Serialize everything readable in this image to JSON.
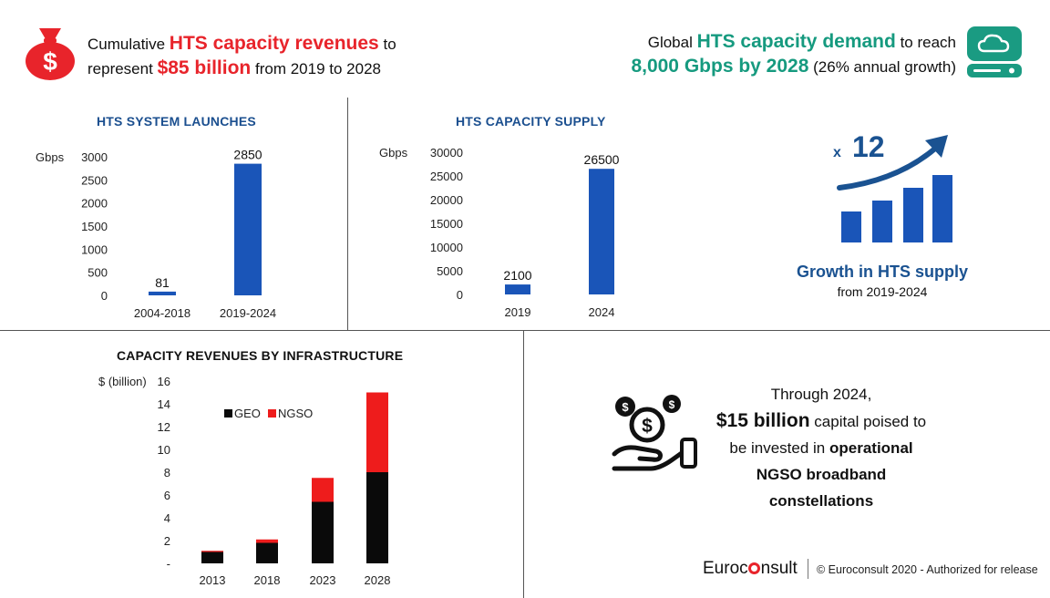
{
  "headline_left": {
    "pre": "Cumulative",
    "highlight1": "HTS capacity revenues",
    "mid": "to",
    "line2_pre": "represent",
    "highlight2": "$85 billion",
    "line2_post": "from 2019 to 2028"
  },
  "headline_right": {
    "pre": "Global",
    "highlight1": "HTS capacity demand",
    "mid": "to reach",
    "highlight2": "8,000 Gbps by 2028",
    "post": "(26% annual growth)"
  },
  "growth": {
    "multiplier_prefix": "x",
    "multiplier": "12",
    "title": "Growth in HTS supply",
    "subtitle": "from 2019-2024"
  },
  "investment": {
    "line1": "Through 2024,",
    "amount": "$15 billion",
    "line2_post": "capital poised to",
    "line3_pre": "be invested in",
    "line3_bold": "operational",
    "line4": "NGSO broadband",
    "line5": "constellations"
  },
  "footer": {
    "brand_pre": "Euroc",
    "brand_post": "nsult",
    "copyright": "© Euroconsult 2020 - Authorized for release"
  },
  "colors": {
    "bar_blue": "#1a55b8",
    "geo": "#0a0a0a",
    "ngso": "#ee1c1c",
    "headline_red": "#e8242b",
    "headline_teal": "#169a7f",
    "growth_blue": "#1a5291"
  },
  "chart_data": [
    {
      "id": "launches",
      "type": "bar",
      "title": "HTS SYSTEM LAUNCHES",
      "ylabel": "Gbps",
      "categories": [
        "2004-2018",
        "2019-2024"
      ],
      "values": [
        81,
        2850
      ],
      "data_labels": [
        "81",
        "2850"
      ],
      "yticks": [
        "0",
        "500",
        "1000",
        "1500",
        "2000",
        "2500",
        "3000"
      ],
      "ylim": [
        0,
        3000
      ],
      "grid": false
    },
    {
      "id": "supply",
      "type": "bar",
      "title": "HTS CAPACITY SUPPLY",
      "ylabel": "Gbps",
      "categories": [
        "2019",
        "2024"
      ],
      "values": [
        2100,
        26500
      ],
      "data_labels": [
        "2100",
        "26500"
      ],
      "yticks": [
        "0",
        "5000",
        "10000",
        "15000",
        "20000",
        "25000",
        "30000"
      ],
      "ylim": [
        0,
        30000
      ],
      "grid": false
    },
    {
      "id": "revenues",
      "type": "bar",
      "stacked": true,
      "title": "CAPACITY REVENUES BY INFRASTRUCTURE",
      "ylabel": "$ (billion)",
      "categories": [
        "2013",
        "2018",
        "2023",
        "2028"
      ],
      "series": [
        {
          "name": "GEO",
          "values": [
            1.0,
            1.8,
            5.4,
            8.0
          ]
        },
        {
          "name": "NGSO",
          "values": [
            0.1,
            0.3,
            2.1,
            7.0
          ]
        }
      ],
      "yticks": [
        "-",
        "2",
        "4",
        "6",
        "8",
        "10",
        "12",
        "14",
        "16"
      ],
      "ylim": [
        0,
        16
      ],
      "legend": "top-left",
      "grid": false
    }
  ]
}
